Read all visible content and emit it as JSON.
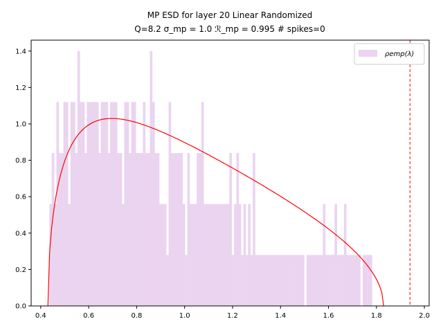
{
  "chart_data": {
    "type": "bar",
    "title_line1": "MP ESD for layer 20 Linear Randomized",
    "title_line2": "Q=8.2 σ_mp = 1.0 ℛ_mp = 0.995 # spikes=0",
    "xlim": [
      0.36,
      2.02
    ],
    "ylim": [
      0.0,
      1.46
    ],
    "xticks": [
      0.4,
      0.6,
      0.8,
      1.0,
      1.2,
      1.4,
      1.6,
      1.8,
      2.0
    ],
    "xtick_labels": [
      "0.4",
      "0.6",
      "0.8",
      "1.0",
      "1.2",
      "1.4",
      "1.6",
      "1.8",
      "2.0"
    ],
    "yticks": [
      0.0,
      0.2,
      0.4,
      0.6,
      0.8,
      1.0,
      1.2,
      1.4
    ],
    "ytick_labels": [
      "0.0",
      "0.2",
      "0.4",
      "0.6",
      "0.8",
      "1.0",
      "1.2",
      "1.4"
    ],
    "legend": {
      "label": "ρemp(λ)",
      "position": "upper right"
    },
    "colors": {
      "histogram": "#ebd4f0",
      "mp_curve": "#ff0000",
      "spike_line": "#ff0000"
    },
    "histogram": {
      "bin_start": 0.436,
      "bin_width": 0.00975,
      "heights": [
        0.56,
        0.84,
        0.56,
        1.12,
        0.84,
        0.84,
        1.12,
        1.12,
        0.56,
        1.12,
        1.12,
        0.84,
        1.4,
        1.12,
        1.12,
        0.84,
        1.12,
        1.12,
        1.12,
        1.12,
        1.12,
        0.84,
        1.12,
        1.12,
        1.12,
        0.84,
        1.12,
        1.12,
        1.12,
        0.84,
        0.84,
        0.56,
        1.12,
        1.12,
        0.84,
        1.12,
        1.12,
        0.84,
        0.84,
        0.84,
        1.12,
        0.84,
        0.84,
        1.4,
        1.12,
        0.84,
        0.84,
        0.56,
        0.56,
        0.56,
        0.28,
        1.12,
        0.84,
        0.84,
        0.84,
        0.84,
        0.84,
        0.56,
        0.28,
        0.84,
        0.56,
        0.56,
        0.56,
        0.84,
        0.84,
        1.12,
        0.56,
        0.56,
        0.56,
        0.56,
        0.56,
        0.56,
        0.56,
        0.56,
        0.56,
        0.56,
        0.56,
        0.84,
        0.28,
        0.56,
        0.84,
        0.56,
        0.28,
        0.56,
        0.28,
        0.56,
        0.28,
        0.84,
        0.28,
        0.28,
        0.56,
        0.28,
        0.28,
        0.28,
        0.28,
        0.28,
        0.28,
        0.28,
        0.28,
        0.28,
        0.28,
        0.28,
        0.28,
        0.28,
        0.28,
        0.28,
        0.28,
        0.28,
        0.28,
        0.28,
        0.28,
        0.28,
        0.28,
        0.28,
        0.28,
        0.28,
        0.28,
        0.28,
        0.28,
        0.28,
        0.28,
        0.28,
        0.28,
        0.28,
        0.28,
        0.28,
        0.28,
        0.28,
        0.28,
        0.28,
        0.28,
        0.28,
        0.28,
        0.28,
        0.28,
        0.28,
        0.28,
        0.28
      ],
      "overrides": [
        [
          1.315,
          1.325,
          0.28
        ],
        [
          1.495,
          1.505,
          0.0
        ],
        [
          1.575,
          1.585,
          0.56
        ],
        [
          1.605,
          1.615,
          0.28
        ],
        [
          1.625,
          1.635,
          0.56
        ],
        [
          1.645,
          1.655,
          0.28
        ],
        [
          1.665,
          1.675,
          0.56
        ],
        [
          1.735,
          1.745,
          0.0
        ],
        [
          1.785,
          1.795,
          0.0
        ]
      ]
    },
    "mp_curve": {
      "lambda_minus": 0.43,
      "lambda_plus": 1.83,
      "sigma": 1.0,
      "Q": 8.2,
      "samples": 200
    },
    "spike_line_x": 1.94
  }
}
